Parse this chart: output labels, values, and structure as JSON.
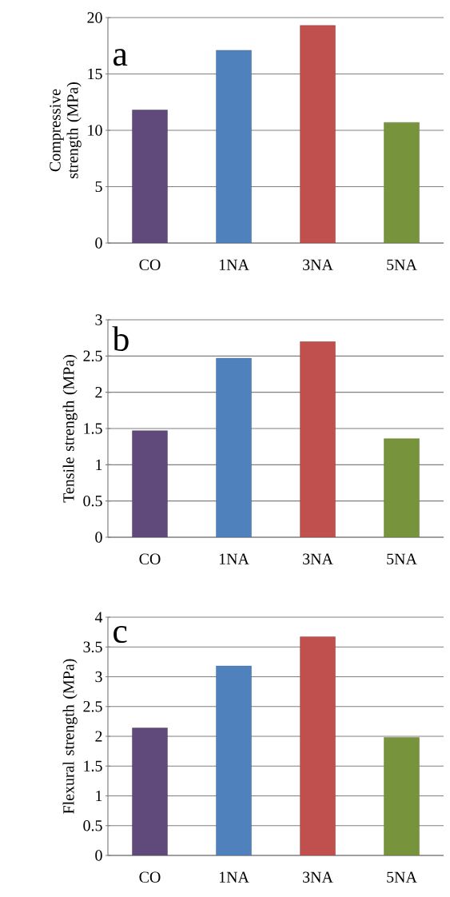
{
  "chart_data": [
    {
      "type": "bar",
      "ylabel": "Compressive  strength (MPa)",
      "annotations": [
        "a"
      ],
      "categories": [
        "CO",
        "1NA",
        "3NA",
        "5NA"
      ],
      "values": [
        11.8,
        17.1,
        19.3,
        10.7
      ],
      "colors": [
        "#604a7b",
        "#4f81bd",
        "#c0504d",
        "#77933c"
      ],
      "ylim": [
        0,
        20
      ],
      "yticks": [
        0,
        5,
        10,
        15,
        20
      ],
      "grid": "y"
    },
    {
      "type": "bar",
      "ylabel": "Tensile strength (MPa)",
      "annotations": [
        "b"
      ],
      "categories": [
        "CO",
        "1NA",
        "3NA",
        "5NA"
      ],
      "values": [
        1.47,
        2.47,
        2.7,
        1.36
      ],
      "colors": [
        "#604a7b",
        "#4f81bd",
        "#c0504d",
        "#77933c"
      ],
      "ylim": [
        0,
        3
      ],
      "yticks": [
        0,
        0.5,
        1,
        1.5,
        2,
        2.5,
        3
      ],
      "grid": "y"
    },
    {
      "type": "bar",
      "ylabel": "Flexural strength (MPa)",
      "annotations": [
        "c"
      ],
      "categories": [
        "CO",
        "1NA",
        "3NA",
        "5NA"
      ],
      "values": [
        2.14,
        3.18,
        3.67,
        1.98
      ],
      "colors": [
        "#604a7b",
        "#4f81bd",
        "#c0504d",
        "#77933c"
      ],
      "ylim": [
        0,
        4
      ],
      "yticks": [
        0,
        0.5,
        1,
        1.5,
        2,
        2.5,
        3,
        3.5,
        4
      ],
      "grid": "y"
    }
  ]
}
